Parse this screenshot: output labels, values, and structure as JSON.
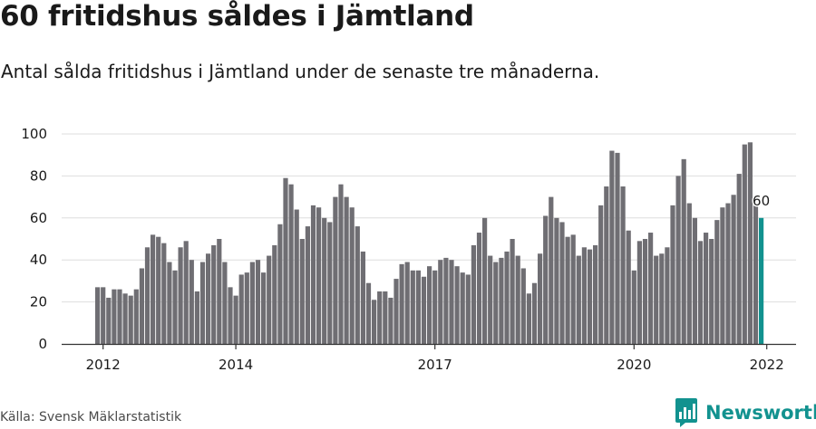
{
  "header": {
    "title": "60 fritidshus såldes i Jämtland",
    "subtitle": "Antal sålda fritidshus i Jämtland under de senaste tre månaderna."
  },
  "footer": {
    "source": "Källa: Svensk Mäklarstatistik",
    "brand": "Newsworthy"
  },
  "colors": {
    "bar": "#6f6e73",
    "highlight": "#12928f",
    "grid": "#dedede",
    "axis": "#333333"
  },
  "chart_data": {
    "type": "bar",
    "title": "60 fritidshus såldes i Jämtland",
    "subtitle": "Antal sålda fritidshus i Jämtland under de senaste tre månaderna.",
    "xlabel": "",
    "ylabel": "",
    "ylim": [
      0,
      100
    ],
    "yticks": [
      0,
      20,
      40,
      60,
      80,
      100
    ],
    "grid": true,
    "x_start": "2011-12",
    "x_end": "2022-02",
    "x_interval": "month",
    "xtick_labels": [
      {
        "label": "2012",
        "date": "2012-01"
      },
      {
        "label": "2014",
        "date": "2014-01"
      },
      {
        "label": "2017",
        "date": "2017-01"
      },
      {
        "label": "2020",
        "date": "2020-01"
      },
      {
        "label": "2022",
        "date": "2022-01"
      }
    ],
    "values": [
      27,
      27,
      22,
      26,
      26,
      24,
      23,
      26,
      36,
      46,
      52,
      51,
      48,
      39,
      35,
      46,
      49,
      40,
      25,
      39,
      43,
      47,
      50,
      39,
      27,
      23,
      33,
      34,
      39,
      40,
      34,
      42,
      47,
      57,
      79,
      76,
      64,
      50,
      56,
      66,
      65,
      60,
      58,
      70,
      76,
      70,
      65,
      56,
      44,
      29,
      21,
      25,
      25,
      22,
      31,
      38,
      39,
      35,
      35,
      32,
      37,
      35,
      40,
      41,
      40,
      37,
      34,
      33,
      47,
      53,
      60,
      42,
      39,
      41,
      44,
      50,
      42,
      36,
      24,
      29,
      43,
      61,
      70,
      60,
      58,
      51,
      52,
      42,
      46,
      45,
      47,
      66,
      75,
      92,
      91,
      75,
      54,
      35,
      49,
      50,
      53,
      42,
      43,
      46,
      66,
      80,
      88,
      67,
      60,
      49,
      53,
      50,
      59,
      65,
      67,
      71,
      81,
      95,
      96,
      66,
      60
    ],
    "highlight_index": 120,
    "annotations": [
      {
        "index": 120,
        "text": "60"
      }
    ]
  }
}
